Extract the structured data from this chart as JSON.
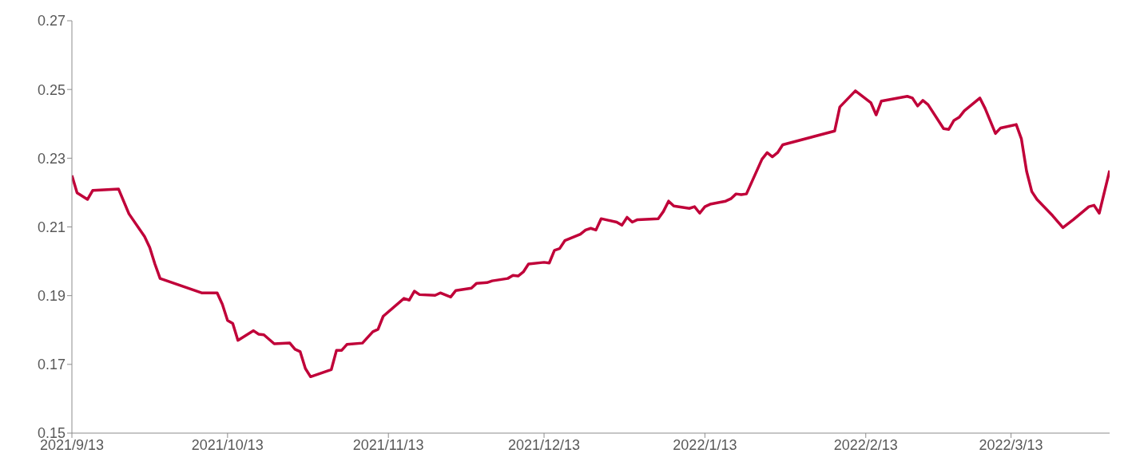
{
  "chart_data": {
    "type": "line",
    "x": [
      "2021-09-13",
      "2021-09-14",
      "2021-09-16",
      "2021-09-17",
      "2021-09-22",
      "2021-09-24",
      "2021-09-27",
      "2021-09-28",
      "2021-09-29",
      "2021-09-30",
      "2021-10-08",
      "2021-10-11",
      "2021-10-12",
      "2021-10-13",
      "2021-10-14",
      "2021-10-15",
      "2021-10-18",
      "2021-10-19",
      "2021-10-20",
      "2021-10-22",
      "2021-10-25",
      "2021-10-26",
      "2021-10-27",
      "2021-10-28",
      "2021-10-29",
      "2021-11-02",
      "2021-11-03",
      "2021-11-04",
      "2021-11-05",
      "2021-11-08",
      "2021-11-10",
      "2021-11-11",
      "2021-11-12",
      "2021-11-16",
      "2021-11-17",
      "2021-11-18",
      "2021-11-19",
      "2021-11-22",
      "2021-11-23",
      "2021-11-25",
      "2021-11-26",
      "2021-11-29",
      "2021-11-30",
      "2021-12-02",
      "2021-12-03",
      "2021-12-06",
      "2021-12-07",
      "2021-12-08",
      "2021-12-09",
      "2021-12-10",
      "2021-12-13",
      "2021-12-14",
      "2021-12-15",
      "2021-12-16",
      "2021-12-17",
      "2021-12-20",
      "2021-12-21",
      "2021-12-22",
      "2021-12-23",
      "2021-12-24",
      "2021-12-27",
      "2021-12-28",
      "2021-12-29",
      "2021-12-30",
      "2021-12-31",
      "2022-01-04",
      "2022-01-05",
      "2022-01-06",
      "2022-01-07",
      "2022-01-10",
      "2022-01-11",
      "2022-01-12",
      "2022-01-13",
      "2022-01-14",
      "2022-01-17",
      "2022-01-18",
      "2022-01-19",
      "2022-01-20",
      "2022-01-21",
      "2022-01-24",
      "2022-01-25",
      "2022-01-26",
      "2022-01-27",
      "2022-01-28",
      "2022-02-07",
      "2022-02-08",
      "2022-02-11",
      "2022-02-14",
      "2022-02-15",
      "2022-02-16",
      "2022-02-21",
      "2022-02-22",
      "2022-02-23",
      "2022-02-24",
      "2022-02-25",
      "2022-02-28",
      "2022-03-01",
      "2022-03-02",
      "2022-03-03",
      "2022-03-04",
      "2022-03-07",
      "2022-03-08",
      "2022-03-10",
      "2022-03-11",
      "2022-03-14",
      "2022-03-15",
      "2022-03-16",
      "2022-03-17",
      "2022-03-18",
      "2022-03-21",
      "2022-03-23",
      "2022-03-25",
      "2022-03-28",
      "2022-03-29",
      "2022-03-30",
      "2022-04-01"
    ],
    "series": [
      {
        "color": "#c00039",
        "values": [
          0.225,
          0.2199,
          0.218,
          0.2206,
          0.221,
          0.2138,
          0.2072,
          0.204,
          0.1992,
          0.195,
          0.1908,
          0.1908,
          0.1875,
          0.1828,
          0.1819,
          0.177,
          0.1798,
          0.1788,
          0.1786,
          0.176,
          0.1762,
          0.1744,
          0.1737,
          0.1688,
          0.1664,
          0.1685,
          0.1741,
          0.1741,
          0.1758,
          0.1762,
          0.1795,
          0.1802,
          0.184,
          0.1892,
          0.1887,
          0.1913,
          0.1903,
          0.1901,
          0.1908,
          0.1896,
          0.1915,
          0.1922,
          0.1936,
          0.1938,
          0.1943,
          0.195,
          0.1959,
          0.1957,
          0.1969,
          0.1992,
          0.1997,
          0.1995,
          0.2032,
          0.2037,
          0.206,
          0.2079,
          0.2091,
          0.2096,
          0.2091,
          0.2124,
          0.2114,
          0.2105,
          0.2128,
          0.2114,
          0.2121,
          0.2124,
          0.2145,
          0.2175,
          0.2161,
          0.2154,
          0.2159,
          0.214,
          0.2159,
          0.2166,
          0.2175,
          0.2182,
          0.2196,
          0.2194,
          0.2196,
          0.2297,
          0.2316,
          0.2304,
          0.2316,
          0.2339,
          0.2379,
          0.2449,
          0.2496,
          0.2461,
          0.2426,
          0.2466,
          0.248,
          0.2475,
          0.2452,
          0.2468,
          0.2456,
          0.2386,
          0.2384,
          0.241,
          0.2419,
          0.2438,
          0.2475,
          0.2445,
          0.2372,
          0.2388,
          0.2398,
          0.2356,
          0.2262,
          0.2203,
          0.218,
          0.2133,
          0.2098,
          0.2121,
          0.2159,
          0.2163,
          0.214,
          0.2264
        ]
      }
    ],
    "xlim": [
      "2021-09-13",
      "2022-04-01"
    ],
    "xticks": [
      {
        "value": "2021-09-13",
        "label": "2021/9/13"
      },
      {
        "value": "2021-10-13",
        "label": "2021/10/13"
      },
      {
        "value": "2021-11-13",
        "label": "2021/11/13"
      },
      {
        "value": "2021-12-13",
        "label": "2021/12/13"
      },
      {
        "value": "2022-01-13",
        "label": "2022/1/13"
      },
      {
        "value": "2022-02-13",
        "label": "2022/2/13"
      },
      {
        "value": "2022-03-13",
        "label": "2022/3/13"
      }
    ],
    "ylim": [
      0.15,
      0.27
    ],
    "yticks": [
      0.15,
      0.17,
      0.19,
      0.21,
      0.23,
      0.25,
      0.27
    ],
    "grid": false,
    "legend": false,
    "marker": "none",
    "line_style": "solid"
  }
}
